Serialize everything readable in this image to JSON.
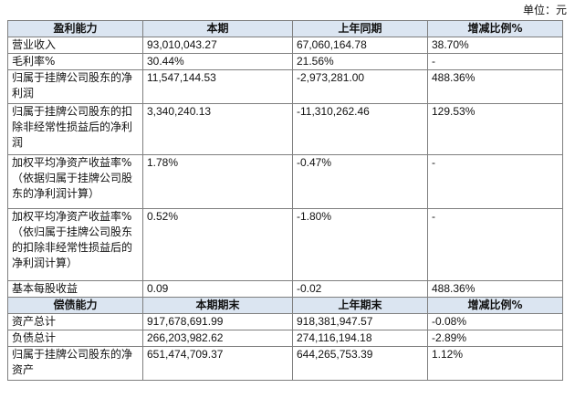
{
  "unit_label": "单位：元",
  "section1": {
    "headers": [
      "盈利能力",
      "本期",
      "上年同期",
      "增减比例%"
    ],
    "rows": [
      {
        "label": "营业收入",
        "current": "93,010,043.27",
        "prior": "67,060,164.78",
        "change": "38.70%"
      },
      {
        "label": "毛利率%",
        "current": "30.44%",
        "prior": "21.56%",
        "change": "-"
      },
      {
        "label": "归属于挂牌公司股东的净利润",
        "current": "11,547,144.53",
        "prior": "-2,973,281.00",
        "change": "488.36%"
      },
      {
        "label": "归属于挂牌公司股东的扣除非经常性损益后的净利润",
        "current": "3,340,240.13",
        "prior": "-11,310,262.46",
        "change": "129.53%"
      },
      {
        "label": "加权平均净资产收益率%（依据归属于挂牌公司股东的净利润计算）",
        "current": "1.78%",
        "prior": "-0.47%",
        "change": "-"
      },
      {
        "label": "加权平均净资产收益率%（依归属于挂牌公司股东的扣除非经常性损益后的净利润计算）",
        "current": "0.52%",
        "prior": "-1.80%",
        "change": "-"
      },
      {
        "label": "基本每股收益",
        "current": "0.09",
        "prior": "-0.02",
        "change": "488.36%"
      }
    ]
  },
  "section2": {
    "headers": [
      "偿债能力",
      "本期期末",
      "上年期末",
      "增减比例%"
    ],
    "rows": [
      {
        "label": "资产总计",
        "current": "917,678,691.99",
        "prior": "918,381,947.57",
        "change": "-0.08%"
      },
      {
        "label": "负债总计",
        "current": "266,203,982.62",
        "prior": "274,116,194.18",
        "change": "-2.89%"
      },
      {
        "label": "归属于挂牌公司股东的净资产",
        "current": "651,474,709.37",
        "prior": "644,265,753.39",
        "change": "1.12%"
      }
    ]
  }
}
